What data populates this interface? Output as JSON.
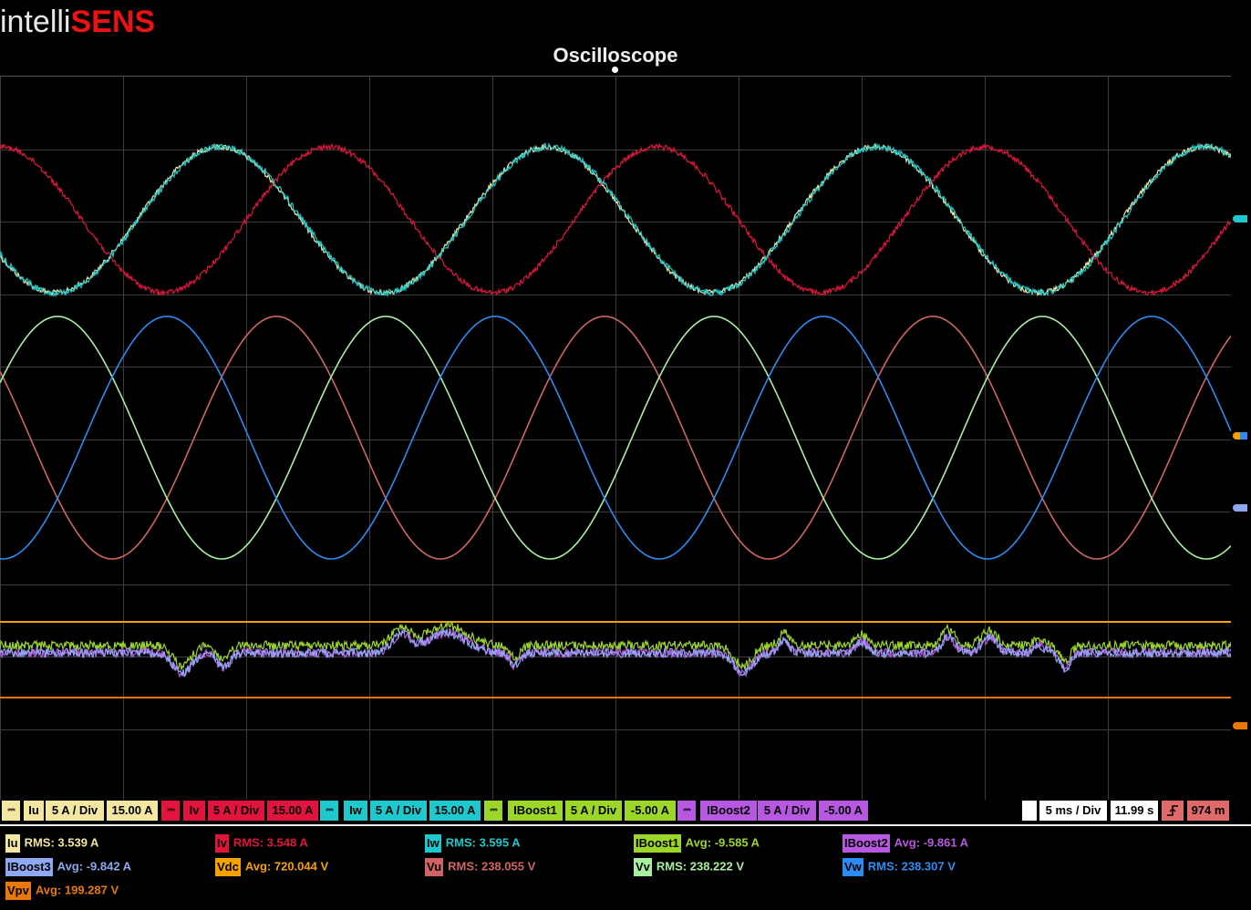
{
  "brand": {
    "part1": "intelli",
    "part2": "SENS"
  },
  "title": "Oscilloscope",
  "colors": {
    "iu": "#f2e6a0",
    "iv": "#e0143c",
    "iw": "#1ec8cc",
    "iboost1": "#9cd628",
    "iboost2": "#b659e0",
    "iboost3": "#8fa8f0",
    "vdc": "#f5a200",
    "vpv": "#e8780c",
    "vu": "#d06464",
    "vv": "#a8f0a0",
    "vw": "#2a8cf4",
    "grid": "#3c3c3c",
    "trigger": "#e06a6a"
  },
  "channel_bar": {
    "dc_symbol": "⎓",
    "channels": [
      {
        "name": "Iu",
        "scale": "5 A / Div",
        "offset": "15.00 A",
        "color": "#f2e6a0"
      },
      {
        "name": "Iv",
        "scale": "5 A / Div",
        "offset": "15.00 A",
        "color": "#e0143c"
      },
      {
        "name": "Iw",
        "scale": "5 A / Div",
        "offset": "15.00 A",
        "color": "#1ec8cc"
      },
      {
        "name": "IBoost1",
        "scale": "5 A / Div",
        "offset": "-5.00 A",
        "color": "#9cd628"
      },
      {
        "name": "IBoost2",
        "scale": "5 A / Div",
        "offset": "-5.00 A",
        "color": "#b659e0"
      }
    ],
    "timebase": "5 ms / Div",
    "time": "11.99 s",
    "trigger_icon": "trigger-rising-edge-icon",
    "trigger_level": "974 m"
  },
  "measurements": [
    {
      "tag": "Iu",
      "label": "RMS:",
      "value": "3.539 A",
      "color": "#f2e6a0"
    },
    {
      "tag": "Iv",
      "label": "RMS:",
      "value": "3.548 A",
      "color": "#e0143c"
    },
    {
      "tag": "Iw",
      "label": "RMS:",
      "value": "3.595 A",
      "color": "#1ec8cc"
    },
    {
      "tag": "IBoost1",
      "label": "Avg:",
      "value": "-9.585 A",
      "color": "#9cd628"
    },
    {
      "tag": "IBoost2",
      "label": "Avg:",
      "value": "-9.861 A",
      "color": "#b659e0"
    },
    {
      "tag": "IBoost3",
      "label": "Avg:",
      "value": "-9.842 A",
      "color": "#8fa8f0"
    },
    {
      "tag": "Vdc",
      "label": "Avg:",
      "value": "720.044 V",
      "color": "#f5a200"
    },
    {
      "tag": "Vu",
      "label": "RMS:",
      "value": "238.055 V",
      "color": "#d06464"
    },
    {
      "tag": "Vv",
      "label": "RMS:",
      "value": "238.222 V",
      "color": "#a8f0a0"
    },
    {
      "tag": "Vw",
      "label": "RMS:",
      "value": "238.307 V",
      "color": "#2a8cf4"
    },
    {
      "tag": "Vpv",
      "label": "Avg:",
      "value": "199.287 V",
      "color": "#e8780c"
    }
  ]
}
